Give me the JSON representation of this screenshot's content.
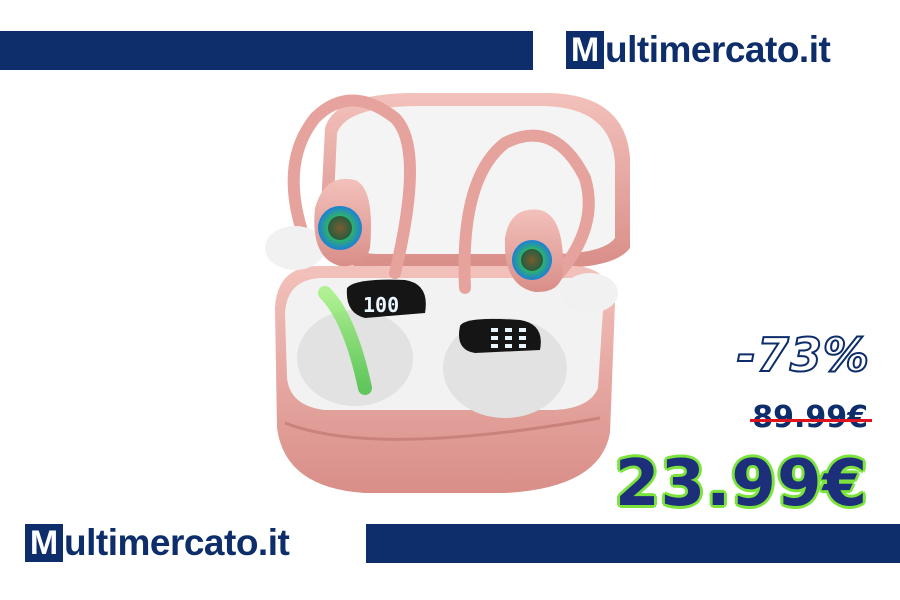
{
  "brand": {
    "logo_letter": "M",
    "logo_rest": "ultimercato.it",
    "color": "#0d2d6b"
  },
  "product": {
    "icon": "earbuds-charging-case-image",
    "case_color": "#e8a5a0",
    "display_left": "100",
    "display_right": "888"
  },
  "pricing": {
    "discount": "-73%",
    "old_price": "89.99€",
    "new_price": "23.99€",
    "accent_green": "#7be33c",
    "strike_red": "#e0141e"
  }
}
